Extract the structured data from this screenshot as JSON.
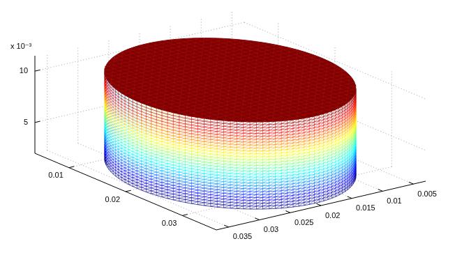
{
  "chart_data": {
    "type": "mesh3d",
    "shape": "cylinder",
    "center": [
      0.02,
      0.02
    ],
    "radius": 0.015,
    "zrange": [
      0.002,
      0.0105
    ],
    "xlim": [
      0.003,
      0.037
    ],
    "ylim": [
      0.004,
      0.036
    ],
    "zlim": [
      0.002,
      0.0115
    ],
    "xticks": [
      0.005,
      0.01,
      0.015,
      0.02,
      0.025,
      0.03,
      0.035
    ],
    "yticks": [
      0.01,
      0.02,
      0.03
    ],
    "zticks": [
      {
        "value": 0.005,
        "label": "5"
      },
      {
        "value": 0.01,
        "label": "10"
      }
    ],
    "z_exponent_label": "x 10⁻³",
    "grid": true,
    "color": "jet"
  }
}
